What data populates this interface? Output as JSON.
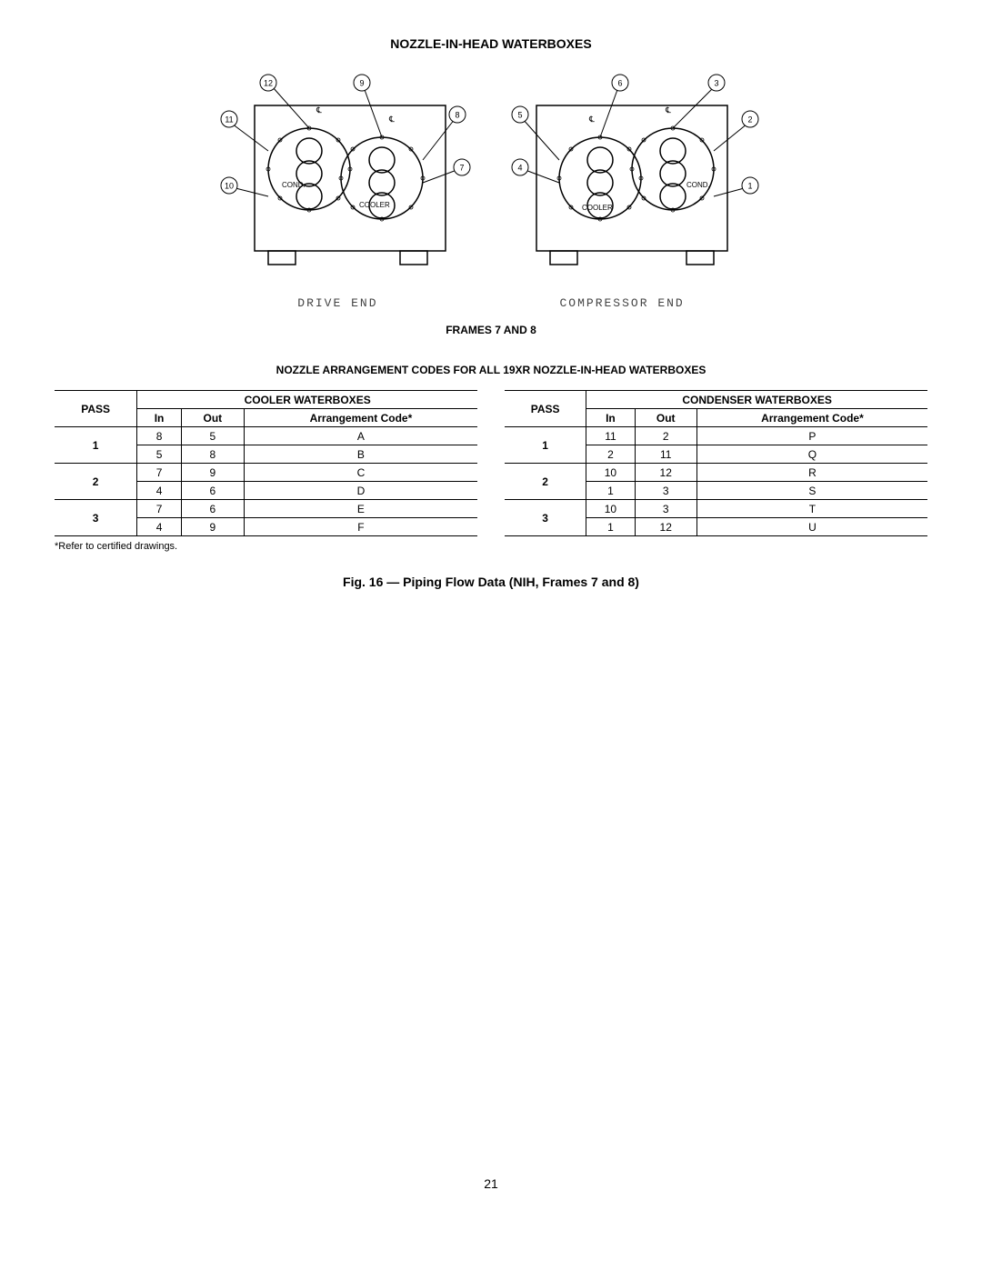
{
  "titles": {
    "main": "NOZZLE-IN-HEAD WATERBOXES",
    "frames": "FRAMES 7 AND 8",
    "arrangement": "NOZZLE ARRANGEMENT CODES FOR ALL 19XR NOZZLE-IN-HEAD WATERBOXES",
    "figure_caption": "Fig. 16 — Piping Flow Data (NIH, Frames 7 and 8)"
  },
  "diagram": {
    "drive_end_label": "DRIVE END",
    "compressor_end_label": "COMPRESSOR END",
    "left_text_cond": "COND.",
    "left_text_cooler": "COOLER",
    "right_text_cond": "COND.",
    "right_text_cooler": "COOLER",
    "callouts_left": [
      "12",
      "11",
      "10",
      "9",
      "8",
      "7"
    ],
    "callouts_right": [
      "6",
      "5",
      "4",
      "3",
      "2",
      "1"
    ]
  },
  "cooler_table": {
    "header_pass": "PASS",
    "header_group": "COOLER WATERBOXES",
    "header_in": "In",
    "header_out": "Out",
    "header_code": "Arrangement Code*",
    "rows": [
      {
        "pass": "1",
        "in": "8",
        "out": "5",
        "code": "A"
      },
      {
        "pass": "",
        "in": "5",
        "out": "8",
        "code": "B"
      },
      {
        "pass": "2",
        "in": "7",
        "out": "9",
        "code": "C"
      },
      {
        "pass": "",
        "in": "4",
        "out": "6",
        "code": "D"
      },
      {
        "pass": "3",
        "in": "7",
        "out": "6",
        "code": "E"
      },
      {
        "pass": "",
        "in": "4",
        "out": "9",
        "code": "F"
      }
    ]
  },
  "condenser_table": {
    "header_pass": "PASS",
    "header_group": "CONDENSER WATERBOXES",
    "header_in": "In",
    "header_out": "Out",
    "header_code": "Arrangement Code*",
    "rows": [
      {
        "pass": "1",
        "in": "11",
        "out": "2",
        "code": "P"
      },
      {
        "pass": "",
        "in": "2",
        "out": "11",
        "code": "Q"
      },
      {
        "pass": "2",
        "in": "10",
        "out": "12",
        "code": "R"
      },
      {
        "pass": "",
        "in": "1",
        "out": "3",
        "code": "S"
      },
      {
        "pass": "3",
        "in": "10",
        "out": "3",
        "code": "T"
      },
      {
        "pass": "",
        "in": "1",
        "out": "12",
        "code": "U"
      }
    ]
  },
  "footnote": "*Refer to certified drawings.",
  "page_number": "21",
  "styling": {
    "font_family": "Arial",
    "title_fontsize_pt": 14,
    "body_fontsize_pt": 12,
    "footnote_fontsize_pt": 11,
    "text_color": "#000000",
    "background_color": "#ffffff",
    "table_border_color": "#000000"
  }
}
